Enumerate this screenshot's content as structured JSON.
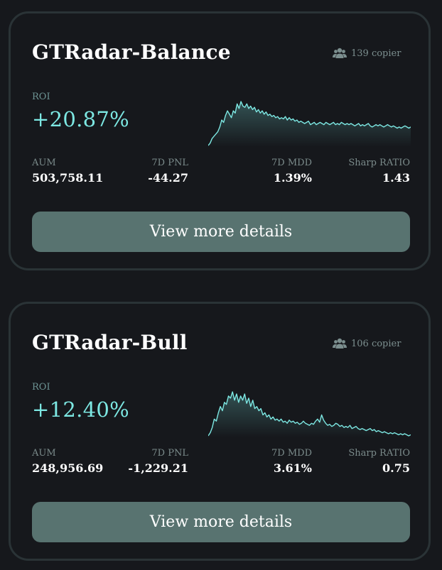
{
  "cards": [
    {
      "title": "GTRadar-Balance",
      "copier_text": "139 copier",
      "roi_label": "ROI",
      "roi_value": "+20.87%",
      "stats": {
        "aum_label": "AUM",
        "aum_value": "503,758.11",
        "pnl_label": "7D PNL",
        "pnl_value": "-44.27",
        "mdd_label": "7D MDD",
        "mdd_value": "1.39%",
        "sharp_label": "Sharp RATIO",
        "sharp_value": "1.43"
      },
      "button_label": "View more details",
      "chart_data": {
        "type": "area",
        "color": "#7de8e3",
        "values": [
          2,
          4,
          8,
          10,
          12,
          14,
          18,
          24,
          22,
          28,
          32,
          29,
          26,
          32,
          30,
          38,
          34,
          40,
          36,
          35,
          38,
          34,
          36,
          33,
          35,
          31,
          33,
          30,
          32,
          29,
          31,
          28,
          29,
          27,
          28,
          26,
          27,
          25,
          26,
          25,
          27,
          24,
          26,
          24,
          25,
          23,
          24,
          22,
          23,
          22,
          21,
          22,
          23,
          20,
          21,
          22,
          20,
          21,
          22,
          21,
          20,
          22,
          21,
          20,
          21,
          22,
          20,
          21,
          20,
          22,
          21,
          20,
          21,
          20,
          21,
          20,
          19,
          20,
          21,
          19,
          20,
          19,
          20,
          21,
          19,
          18,
          19,
          20,
          19,
          20,
          19,
          18,
          19,
          20,
          19,
          18,
          19,
          18,
          17,
          18,
          17,
          18,
          19,
          18,
          17,
          18
        ]
      }
    },
    {
      "title": "GTRadar-Bull",
      "copier_text": "106 copier",
      "roi_label": "ROI",
      "roi_value": "+12.40%",
      "stats": {
        "aum_label": "AUM",
        "aum_value": "248,956.69",
        "pnl_label": "7D PNL",
        "pnl_value": "-1,229.21",
        "mdd_label": "7D MDD",
        "mdd_value": "3.61%",
        "sharp_label": "Sharp RATIO",
        "sharp_value": "0.75"
      },
      "button_label": "View more details",
      "chart_data": {
        "type": "area",
        "color": "#7de8e3",
        "values": [
          2,
          5,
          10,
          18,
          16,
          24,
          30,
          26,
          34,
          32,
          40,
          38,
          44,
          36,
          42,
          34,
          40,
          36,
          42,
          33,
          38,
          30,
          36,
          28,
          30,
          26,
          28,
          22,
          24,
          20,
          22,
          18,
          20,
          17,
          18,
          16,
          18,
          15,
          16,
          14,
          17,
          15,
          16,
          14,
          15,
          13,
          14,
          16,
          14,
          13,
          12,
          14,
          13,
          16,
          18,
          15,
          22,
          17,
          14,
          12,
          13,
          11,
          12,
          14,
          13,
          11,
          12,
          10,
          11,
          10,
          12,
          9,
          10,
          11,
          9,
          8,
          9,
          8,
          7,
          8,
          9,
          7,
          8,
          6,
          7,
          6,
          5,
          6,
          5,
          4,
          5,
          4,
          5,
          4,
          3,
          4,
          3,
          4,
          3,
          2,
          3
        ]
      }
    }
  ]
}
